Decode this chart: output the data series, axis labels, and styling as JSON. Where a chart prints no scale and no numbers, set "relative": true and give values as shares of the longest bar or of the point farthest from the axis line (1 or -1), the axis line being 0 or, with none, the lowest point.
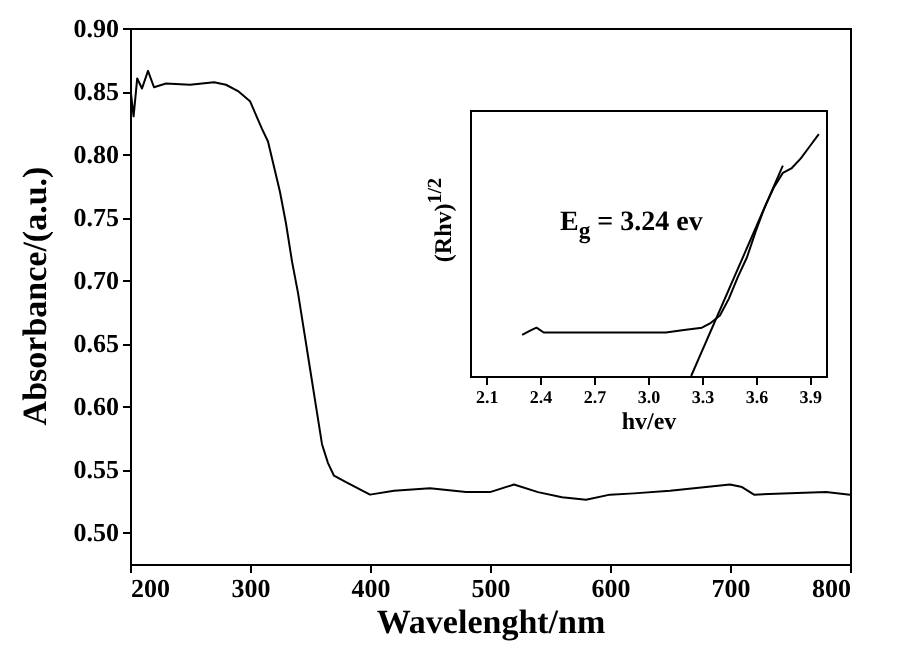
{
  "chart_data": [
    {
      "type": "line",
      "xlabel": "Wavelenght/nm",
      "ylabel": "Absorbance/(a.u.)",
      "xlim": [
        200,
        800
      ],
      "ylim": [
        0.475,
        0.9
      ],
      "xticks": [
        200,
        300,
        400,
        500,
        600,
        700,
        800
      ],
      "yticks": [
        {
          "value": 0.5,
          "label": "0.50"
        },
        0.55,
        {
          "value": 0.6,
          "label": "0.60"
        },
        0.65,
        {
          "value": 0.7,
          "label": "0.70"
        },
        0.75,
        {
          "value": 0.8,
          "label": "0.80"
        },
        0.85,
        {
          "value": 0.9,
          "label": "0.90"
        }
      ],
      "x": [
        200,
        203,
        206,
        210,
        215,
        220,
        230,
        250,
        270,
        280,
        290,
        300,
        310,
        315,
        320,
        325,
        330,
        335,
        340,
        345,
        350,
        355,
        360,
        365,
        370,
        380,
        390,
        400,
        420,
        450,
        480,
        500,
        520,
        540,
        560,
        580,
        600,
        620,
        650,
        680,
        700,
        710,
        720,
        750,
        780,
        800
      ],
      "series": [
        {
          "color": "#000000",
          "values": [
            0.855,
            0.83,
            0.86,
            0.852,
            0.866,
            0.853,
            0.856,
            0.855,
            0.857,
            0.855,
            0.85,
            0.842,
            0.82,
            0.81,
            0.79,
            0.77,
            0.745,
            0.715,
            0.69,
            0.66,
            0.63,
            0.6,
            0.57,
            0.555,
            0.545,
            0.54,
            0.535,
            0.53,
            0.533,
            0.535,
            0.532,
            0.532,
            0.538,
            0.532,
            0.528,
            0.526,
            0.53,
            0.531,
            0.533,
            0.536,
            0.538,
            0.536,
            0.53,
            0.531,
            0.532,
            0.53
          ]
        }
      ]
    },
    {
      "type": "line",
      "relative": true,
      "xlabel": "hv/ev",
      "ylabel": "(Rhv)$^{1/2}$",
      "annotations": [
        "E$_{g}$ = 3.24 ev"
      ],
      "xlim": [
        2.01,
        3.99
      ],
      "xticks": [
        2.1,
        2.4,
        2.7,
        {
          "value": 3,
          "label": "3.0"
        },
        3.3,
        3.6,
        3.9
      ],
      "series": [
        {
          "color": "#000000",
          "x": [
            2.3,
            2.35,
            2.38,
            2.42,
            2.5,
            2.7,
            2.9,
            3.0,
            3.1,
            3.2,
            3.3,
            3.35,
            3.4,
            3.45,
            3.5,
            3.55,
            3.6,
            3.65,
            3.7,
            3.75,
            3.8,
            3.85,
            3.9,
            3.95
          ],
          "values": [
            0.17,
            0.19,
            0.2,
            0.18,
            0.18,
            0.18,
            0.18,
            0.18,
            0.18,
            0.19,
            0.2,
            0.22,
            0.25,
            0.32,
            0.41,
            0.49,
            0.6,
            0.7,
            0.78,
            0.84,
            0.86,
            0.9,
            0.95,
            1.0
          ]
        },
        {
          "color": "#000000",
          "x": [
            3.24,
            3.75
          ],
          "values": [
            0,
            0.87
          ]
        }
      ]
    }
  ]
}
